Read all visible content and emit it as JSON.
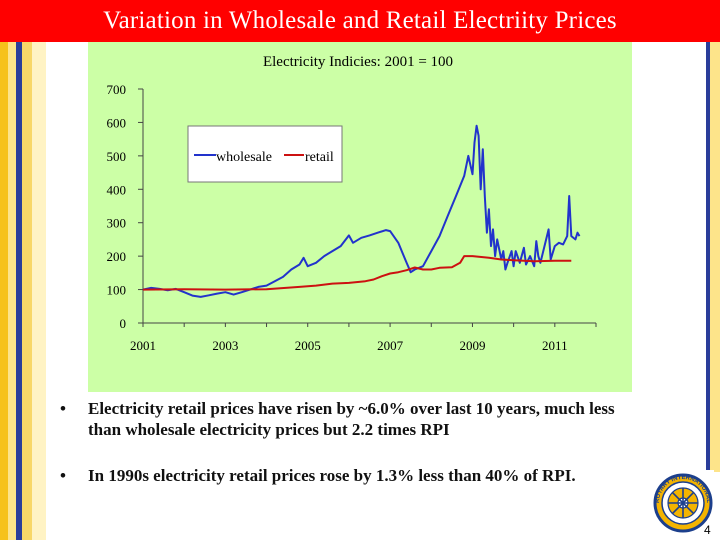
{
  "slide": {
    "title": "Variation in Wholesale and Retail Electriity Prices",
    "page_number": "4"
  },
  "bullets": [
    {
      "marker": "•",
      "text": "Electricity retail prices have risen by ~6.0% over last 10 years, much less than wholesale electricity prices but 2.2 times RPI"
    },
    {
      "marker": "•",
      "text": "In 1990s electricity retail prices rose by 1.3% less than 40% of RPI."
    }
  ],
  "logo": {
    "icon": "rotary-wheel-icon",
    "ring_text": "ROTARY INTERNATIONAL"
  },
  "colors": {
    "title_bg": "#ff0000",
    "chart_bg": "#ccffa6",
    "wholesale": "#2233cc",
    "retail": "#cc1111"
  },
  "chart_data": {
    "type": "line",
    "title": "Electricity Indicies:  2001 = 100",
    "xlabel": "",
    "ylabel": "",
    "xlim": [
      2001,
      2012
    ],
    "ylim": [
      0,
      700
    ],
    "x_ticks": [
      "2001",
      "2003",
      "2005",
      "2007",
      "2009",
      "2011"
    ],
    "y_ticks": [
      "0",
      "100",
      "200",
      "300",
      "400",
      "500",
      "600",
      "700"
    ],
    "grid": false,
    "legend": "top-center",
    "series": [
      {
        "name": "wholesale",
        "color": "#2233cc",
        "points": [
          [
            2001.0,
            100
          ],
          [
            2001.2,
            105
          ],
          [
            2001.4,
            102
          ],
          [
            2001.6,
            98
          ],
          [
            2001.8,
            102
          ],
          [
            2002.0,
            92
          ],
          [
            2002.2,
            82
          ],
          [
            2002.4,
            78
          ],
          [
            2002.6,
            83
          ],
          [
            2002.8,
            88
          ],
          [
            2003.0,
            92
          ],
          [
            2003.2,
            85
          ],
          [
            2003.4,
            92
          ],
          [
            2003.6,
            100
          ],
          [
            2003.8,
            108
          ],
          [
            2004.0,
            112
          ],
          [
            2004.2,
            125
          ],
          [
            2004.4,
            138
          ],
          [
            2004.6,
            160
          ],
          [
            2004.8,
            175
          ],
          [
            2004.9,
            195
          ],
          [
            2005.0,
            170
          ],
          [
            2005.2,
            180
          ],
          [
            2005.4,
            200
          ],
          [
            2005.6,
            215
          ],
          [
            2005.8,
            230
          ],
          [
            2006.0,
            262
          ],
          [
            2006.1,
            240
          ],
          [
            2006.3,
            255
          ],
          [
            2006.5,
            262
          ],
          [
            2006.7,
            270
          ],
          [
            2006.9,
            278
          ],
          [
            2007.0,
            275
          ],
          [
            2007.2,
            240
          ],
          [
            2007.4,
            180
          ],
          [
            2007.5,
            152
          ],
          [
            2007.6,
            160
          ],
          [
            2007.8,
            170
          ],
          [
            2008.0,
            215
          ],
          [
            2008.2,
            260
          ],
          [
            2008.4,
            320
          ],
          [
            2008.6,
            380
          ],
          [
            2008.8,
            440
          ],
          [
            2008.9,
            500
          ],
          [
            2009.0,
            445
          ],
          [
            2009.05,
            540
          ],
          [
            2009.1,
            590
          ],
          [
            2009.15,
            560
          ],
          [
            2009.2,
            400
          ],
          [
            2009.25,
            520
          ],
          [
            2009.3,
            380
          ],
          [
            2009.35,
            270
          ],
          [
            2009.4,
            340
          ],
          [
            2009.45,
            230
          ],
          [
            2009.5,
            280
          ],
          [
            2009.55,
            200
          ],
          [
            2009.6,
            250
          ],
          [
            2009.7,
            190
          ],
          [
            2009.75,
            215
          ],
          [
            2009.8,
            160
          ],
          [
            2009.85,
            180
          ],
          [
            2009.95,
            215
          ],
          [
            2010.0,
            170
          ],
          [
            2010.05,
            215
          ],
          [
            2010.15,
            180
          ],
          [
            2010.25,
            225
          ],
          [
            2010.3,
            175
          ],
          [
            2010.4,
            200
          ],
          [
            2010.5,
            170
          ],
          [
            2010.55,
            245
          ],
          [
            2010.6,
            200
          ],
          [
            2010.65,
            180
          ],
          [
            2010.75,
            230
          ],
          [
            2010.85,
            280
          ],
          [
            2010.9,
            190
          ],
          [
            2011.0,
            230
          ],
          [
            2011.1,
            240
          ],
          [
            2011.2,
            235
          ],
          [
            2011.3,
            260
          ],
          [
            2011.35,
            380
          ],
          [
            2011.4,
            260
          ],
          [
            2011.5,
            250
          ],
          [
            2011.55,
            270
          ],
          [
            2011.6,
            260
          ]
        ]
      },
      {
        "name": "retail",
        "color": "#cc1111",
        "points": [
          [
            2001.0,
            100
          ],
          [
            2002.0,
            101
          ],
          [
            2003.0,
            100
          ],
          [
            2004.0,
            101
          ],
          [
            2004.8,
            108
          ],
          [
            2005.2,
            112
          ],
          [
            2005.6,
            118
          ],
          [
            2006.0,
            120
          ],
          [
            2006.4,
            125
          ],
          [
            2006.6,
            130
          ],
          [
            2006.8,
            140
          ],
          [
            2007.0,
            148
          ],
          [
            2007.2,
            152
          ],
          [
            2007.4,
            158
          ],
          [
            2007.6,
            166
          ],
          [
            2007.8,
            160
          ],
          [
            2008.0,
            160
          ],
          [
            2008.2,
            165
          ],
          [
            2008.5,
            167
          ],
          [
            2008.7,
            180
          ],
          [
            2008.8,
            200
          ],
          [
            2009.0,
            200
          ],
          [
            2009.4,
            195
          ],
          [
            2009.7,
            190
          ],
          [
            2010.0,
            188
          ],
          [
            2010.5,
            185
          ],
          [
            2011.0,
            186
          ],
          [
            2011.4,
            186
          ]
        ]
      }
    ]
  }
}
